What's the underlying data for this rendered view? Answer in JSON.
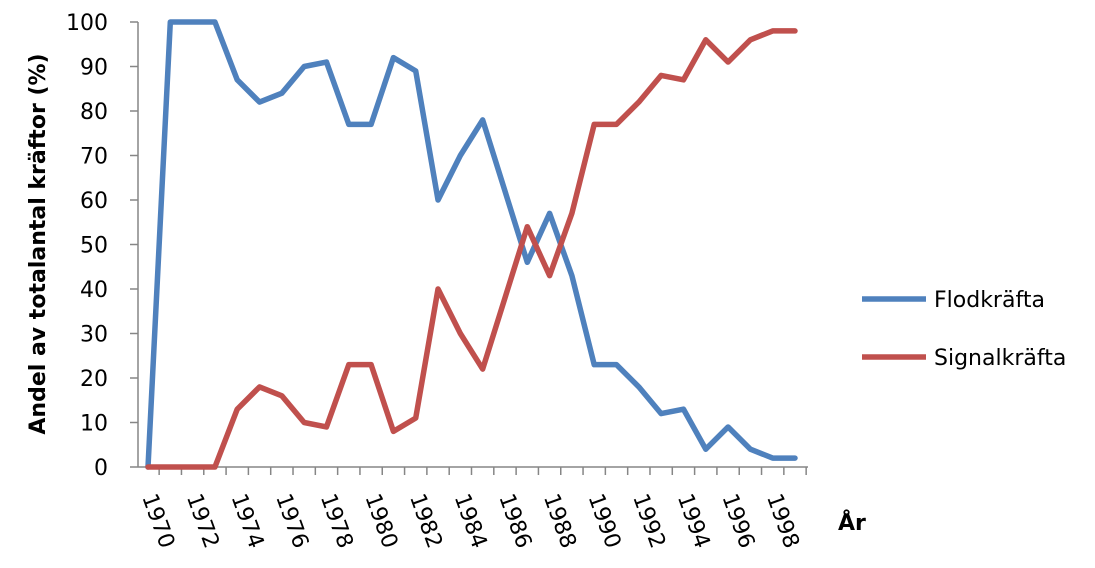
{
  "chart_data": {
    "type": "line",
    "title": "",
    "xlabel": "År",
    "ylabel": "Andel av totalantal kräftor (%)",
    "ylim": [
      0,
      100
    ],
    "yticks": [
      "0",
      "10",
      "20",
      "30",
      "40",
      "50",
      "60",
      "70",
      "80",
      "90",
      "100"
    ],
    "xlim": [
      1970,
      1999
    ],
    "xticks": [
      "1970",
      "1972",
      "1974",
      "1976",
      "1978",
      "1980",
      "1982",
      "1984",
      "1986",
      "1988",
      "1990",
      "1992",
      "1994",
      "1996",
      "1998"
    ],
    "grid": false,
    "legend_position": "right",
    "x": [
      1970,
      1971,
      1972,
      1973,
      1974,
      1975,
      1976,
      1977,
      1978,
      1979,
      1980,
      1981,
      1982,
      1983,
      1984,
      1985,
      1986,
      1987,
      1988,
      1989,
      1990,
      1991,
      1992,
      1993,
      1994,
      1995,
      1996,
      1997,
      1998,
      1999
    ],
    "series": [
      {
        "name": "Flodkräfta",
        "color": "#4f81bd",
        "values": [
          0,
          100,
          100,
          100,
          87,
          82,
          84,
          90,
          91,
          77,
          77,
          92,
          89,
          60,
          70,
          78,
          62,
          46,
          57,
          43,
          23,
          23,
          18,
          12,
          13,
          4,
          9,
          4,
          2,
          2
        ]
      },
      {
        "name": "Signalkräfta",
        "color": "#c0504d",
        "values": [
          0,
          0,
          0,
          0,
          13,
          18,
          16,
          10,
          9,
          23,
          23,
          8,
          11,
          40,
          30,
          22,
          38,
          54,
          43,
          57,
          77,
          77,
          82,
          88,
          87,
          96,
          91,
          96,
          98,
          98
        ]
      }
    ]
  }
}
